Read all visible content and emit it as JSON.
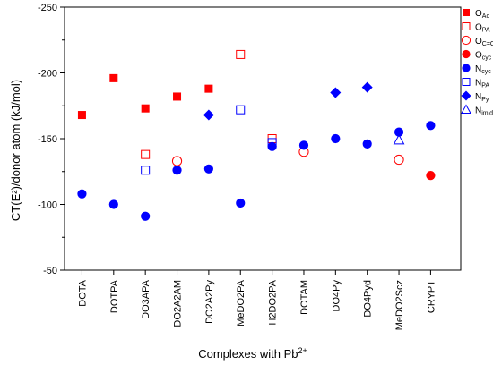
{
  "chart_data": {
    "type": "scatter",
    "xlabel": "Complexes with Pb",
    "xlabel_sup": "2+",
    "ylabel": "CT(E²)/donor atom  (kJ/mol)",
    "ylim": [
      -50,
      -250
    ],
    "yticks": [
      -50,
      -100,
      -150,
      -200,
      -250
    ],
    "grid": false,
    "legend_position": "top-right",
    "categories": [
      "DOTA",
      "DOTPA",
      "DO3APA",
      "DO2A2AM",
      "DO2A2Py",
      "MeDO2PA",
      "H2DO2PA",
      "DOTAM",
      "DO4Py",
      "DO4Pyd",
      "MeDO2Scz",
      "CRYPT"
    ],
    "series": [
      {
        "name": "O",
        "sub": "Ac",
        "marker": "square",
        "filled": true,
        "color": "#ff0000",
        "points": [
          [
            "DOTA",
            -168
          ],
          [
            "DOTPA",
            -196
          ],
          [
            "DO3APA",
            -173
          ],
          [
            "DO2A2AM",
            -182
          ],
          [
            "DO2A2Py",
            -188
          ]
        ]
      },
      {
        "name": "O",
        "sub": "PA",
        "marker": "square",
        "filled": false,
        "color": "#ff0000",
        "points": [
          [
            "DO3APA",
            -138
          ],
          [
            "MeDO2PA",
            -214
          ],
          [
            "H2DO2PA",
            -150
          ]
        ]
      },
      {
        "name": "O",
        "sub": "C=O",
        "marker": "circle",
        "filled": false,
        "color": "#ff0000",
        "points": [
          [
            "DO2A2AM",
            -133
          ],
          [
            "DOTAM",
            -140
          ],
          [
            "MeDO2Scz",
            -134
          ]
        ]
      },
      {
        "name": "O",
        "sub": "cyc",
        "marker": "circle",
        "filled": true,
        "color": "#ff0000",
        "points": [
          [
            "CRYPT",
            -122
          ]
        ]
      },
      {
        "name": "N",
        "sub": "cyc",
        "marker": "circle",
        "filled": true,
        "color": "#0000ff",
        "points": [
          [
            "DOTA",
            -108
          ],
          [
            "DOTPA",
            -100
          ],
          [
            "DO3APA",
            -91
          ],
          [
            "DO2A2AM",
            -126
          ],
          [
            "DO2A2Py",
            -127
          ],
          [
            "MeDO2PA",
            -101
          ],
          [
            "H2DO2PA",
            -144
          ],
          [
            "DOTAM",
            -145
          ],
          [
            "DO4Py",
            -150
          ],
          [
            "DO4Pyd",
            -146
          ],
          [
            "MeDO2Scz",
            -155
          ],
          [
            "CRYPT",
            -160
          ]
        ]
      },
      {
        "name": "N",
        "sub": "PA",
        "marker": "square",
        "filled": false,
        "color": "#0000ff",
        "points": [
          [
            "DO3APA",
            -126
          ],
          [
            "MeDO2PA",
            -172
          ],
          [
            "H2DO2PA",
            -147
          ]
        ]
      },
      {
        "name": "N",
        "sub": "Py",
        "marker": "diamond",
        "filled": true,
        "color": "#0000ff",
        "points": [
          [
            "DO2A2Py",
            -168
          ],
          [
            "DO4Py",
            -185
          ],
          [
            "DO4Pyd",
            -189
          ]
        ]
      },
      {
        "name": "N",
        "sub": "imido",
        "marker": "triangle",
        "filled": false,
        "color": "#0000ff",
        "points": [
          [
            "MeDO2Scz",
            -149
          ]
        ]
      }
    ]
  }
}
